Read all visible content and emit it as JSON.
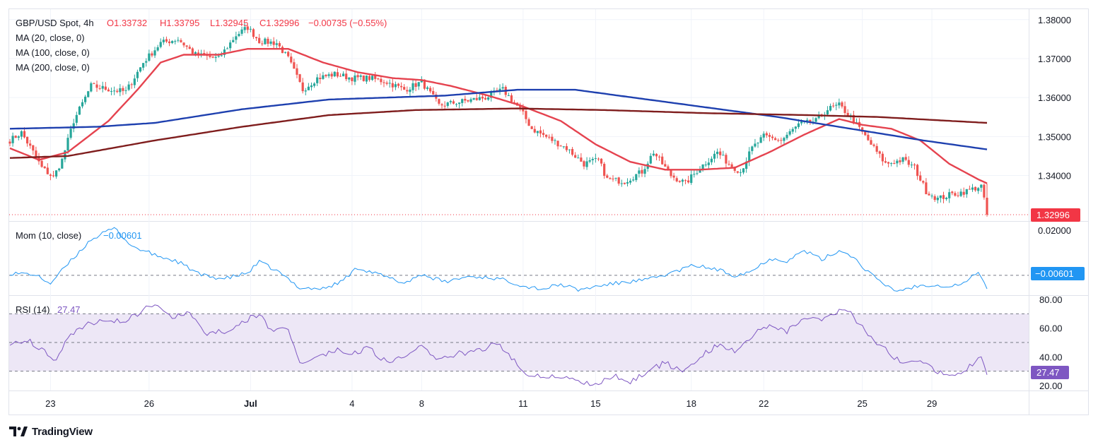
{
  "header": {
    "symbol": "GBP/USD Spot, 4h",
    "open": "O1.33732",
    "high": "H1.33795",
    "low": "L1.32945",
    "close": "C1.32996",
    "change": "−0.00735 (−0.55%)"
  },
  "legend": {
    "ma20": "MA (20, close, 0)",
    "ma100": "MA (100, close, 0)",
    "ma200": "MA (200, close, 0)",
    "mom_name": "Mom (10, close)",
    "mom_value": "−0.00601",
    "rsi_name": "RSI (14)",
    "rsi_value": "27.47"
  },
  "badges": {
    "price": "1.32996",
    "mom": "−0.00601",
    "rsi": "27.47"
  },
  "brand": {
    "name": "TradingView"
  },
  "colors": {
    "up": "#26a69a",
    "down": "#ef5350",
    "ma20": "#e5434f",
    "ma100": "#1e40af",
    "ma200": "#7f1d1d",
    "mom": "#2196f3",
    "rsi": "#7e57c2",
    "rsi_band": "#ede7f6",
    "price_badge": "#f23645",
    "mom_badge": "#2196f3",
    "rsi_badge": "#7e57c2"
  },
  "chart_data": [
    {
      "type": "candlestick",
      "title": "GBP/USD Spot, 4h",
      "ylim": [
        1.3285,
        1.3825
      ],
      "y_ticks": [
        "1.38000",
        "1.37000",
        "1.36000",
        "1.35000",
        "1.34000"
      ],
      "x_ticks": [
        {
          "label": "23",
          "bar": 14
        },
        {
          "label": "26",
          "bar": 48
        },
        {
          "label": "Jul",
          "bar": 83
        },
        {
          "label": "4",
          "bar": 118
        },
        {
          "label": "8",
          "bar": 142
        },
        {
          "label": "11",
          "bar": 177
        },
        {
          "label": "15",
          "bar": 202
        },
        {
          "label": "18",
          "bar": 235
        },
        {
          "label": "22",
          "bar": 260
        },
        {
          "label": "25",
          "bar": 294
        },
        {
          "label": "29",
          "bar": 318
        }
      ],
      "ohlc_anchors": [
        [
          0,
          1.349
        ],
        [
          4,
          1.351
        ],
        [
          8,
          1.346
        ],
        [
          11,
          1.342
        ],
        [
          15,
          1.3395
        ],
        [
          18,
          1.344
        ],
        [
          22,
          1.354
        ],
        [
          28,
          1.363
        ],
        [
          35,
          1.362
        ],
        [
          40,
          1.3615
        ],
        [
          46,
          1.369
        ],
        [
          52,
          1.374
        ],
        [
          58,
          1.375
        ],
        [
          64,
          1.371
        ],
        [
          72,
          1.37
        ],
        [
          78,
          1.376
        ],
        [
          82,
          1.378
        ],
        [
          86,
          1.3745
        ],
        [
          92,
          1.374
        ],
        [
          96,
          1.37
        ],
        [
          101,
          1.362
        ],
        [
          106,
          1.365
        ],
        [
          112,
          1.366
        ],
        [
          118,
          1.365
        ],
        [
          124,
          1.365
        ],
        [
          130,
          1.364
        ],
        [
          136,
          1.362
        ],
        [
          142,
          1.364
        ],
        [
          148,
          1.358
        ],
        [
          156,
          1.359
        ],
        [
          164,
          1.36
        ],
        [
          170,
          1.362
        ],
        [
          176,
          1.357
        ],
        [
          180,
          1.352
        ],
        [
          186,
          1.3495
        ],
        [
          192,
          1.347
        ],
        [
          198,
          1.343
        ],
        [
          203,
          1.344
        ],
        [
          206,
          1.339
        ],
        [
          212,
          1.3385
        ],
        [
          218,
          1.341
        ],
        [
          222,
          1.346
        ],
        [
          228,
          1.34
        ],
        [
          233,
          1.338
        ],
        [
          238,
          1.342
        ],
        [
          244,
          1.346
        ],
        [
          248,
          1.343
        ],
        [
          252,
          1.341
        ],
        [
          256,
          1.347
        ],
        [
          260,
          1.35
        ],
        [
          266,
          1.349
        ],
        [
          272,
          1.353
        ],
        [
          278,
          1.354
        ],
        [
          282,
          1.357
        ],
        [
          286,
          1.358
        ],
        [
          290,
          1.355
        ],
        [
          294,
          1.351
        ],
        [
          298,
          1.347
        ],
        [
          302,
          1.343
        ],
        [
          308,
          1.344
        ],
        [
          312,
          1.342
        ],
        [
          316,
          1.336
        ],
        [
          320,
          1.334
        ],
        [
          324,
          1.335
        ],
        [
          330,
          1.336
        ],
        [
          335,
          1.3373
        ],
        [
          337,
          1.32996
        ]
      ],
      "last_close": 1.32996,
      "series": [
        {
          "name": "MA (20, close, 0)",
          "anchors": [
            [
              0,
              1.347
            ],
            [
              10,
              1.344
            ],
            [
              20,
              1.346
            ],
            [
              34,
              1.354
            ],
            [
              44,
              1.362
            ],
            [
              52,
              1.369
            ],
            [
              60,
              1.371
            ],
            [
              72,
              1.371
            ],
            [
              82,
              1.3725
            ],
            [
              96,
              1.3725
            ],
            [
              108,
              1.369
            ],
            [
              120,
              1.3665
            ],
            [
              132,
              1.365
            ],
            [
              142,
              1.3645
            ],
            [
              152,
              1.363
            ],
            [
              165,
              1.3605
            ],
            [
              176,
              1.358
            ],
            [
              190,
              1.354
            ],
            [
              202,
              1.348
            ],
            [
              214,
              1.3435
            ],
            [
              226,
              1.3415
            ],
            [
              238,
              1.3415
            ],
            [
              250,
              1.342
            ],
            [
              262,
              1.346
            ],
            [
              274,
              1.3505
            ],
            [
              286,
              1.3545
            ],
            [
              294,
              1.353
            ],
            [
              304,
              1.352
            ],
            [
              314,
              1.349
            ],
            [
              324,
              1.343
            ],
            [
              334,
              1.339
            ],
            [
              337,
              1.338
            ]
          ]
        },
        {
          "name": "MA (100, close, 0)",
          "anchors": [
            [
              0,
              1.352
            ],
            [
              30,
              1.3525
            ],
            [
              50,
              1.3535
            ],
            [
              80,
              1.357
            ],
            [
              110,
              1.3595
            ],
            [
              150,
              1.3605
            ],
            [
              175,
              1.362
            ],
            [
              195,
              1.362
            ],
            [
              215,
              1.36
            ],
            [
              240,
              1.3575
            ],
            [
              265,
              1.355
            ],
            [
              290,
              1.352
            ],
            [
              315,
              1.349
            ],
            [
              337,
              1.3467
            ]
          ]
        },
        {
          "name": "MA (200, close, 0)",
          "anchors": [
            [
              0,
              1.3445
            ],
            [
              20,
              1.345
            ],
            [
              50,
              1.349
            ],
            [
              80,
              1.3525
            ],
            [
              110,
              1.3555
            ],
            [
              140,
              1.3568
            ],
            [
              175,
              1.3572
            ],
            [
              205,
              1.3568
            ],
            [
              240,
              1.356
            ],
            [
              275,
              1.3555
            ],
            [
              300,
              1.355
            ],
            [
              337,
              1.3535
            ]
          ]
        }
      ]
    },
    {
      "type": "line",
      "title": "Mom (10, close)",
      "ylim": [
        -0.0085,
        0.0235
      ],
      "y_ticks": [
        "0.02000",
        "0.00000"
      ],
      "series": [
        {
          "name": "Mom (10, close)",
          "anchors": [
            [
              0,
              0.001
            ],
            [
              8,
              0.0005
            ],
            [
              14,
              -0.0035
            ],
            [
              20,
              0.005
            ],
            [
              28,
              0.016
            ],
            [
              36,
              0.021
            ],
            [
              42,
              0.013
            ],
            [
              50,
              0.009
            ],
            [
              58,
              0.006
            ],
            [
              66,
              0.0
            ],
            [
              74,
              -0.0015
            ],
            [
              82,
              0.001
            ],
            [
              86,
              0.006
            ],
            [
              92,
              0.002
            ],
            [
              100,
              -0.0055
            ],
            [
              108,
              -0.006
            ],
            [
              114,
              -0.003
            ],
            [
              120,
              0.0035
            ],
            [
              128,
              0.0
            ],
            [
              136,
              -0.0035
            ],
            [
              142,
              0.0005
            ],
            [
              150,
              -0.003
            ],
            [
              158,
              -0.0005
            ],
            [
              166,
              -0.001
            ],
            [
              172,
              -0.0025
            ],
            [
              178,
              -0.005
            ],
            [
              184,
              -0.006
            ],
            [
              190,
              -0.004
            ],
            [
              196,
              -0.0065
            ],
            [
              204,
              -0.0045
            ],
            [
              212,
              -0.003
            ],
            [
              220,
              -0.002
            ],
            [
              228,
              0.001
            ],
            [
              236,
              0.0045
            ],
            [
              244,
              0.0025
            ],
            [
              250,
              0.0
            ],
            [
              256,
              0.002
            ],
            [
              262,
              0.0075
            ],
            [
              268,
              0.0065
            ],
            [
              274,
              0.011
            ],
            [
              280,
              0.007
            ],
            [
              286,
              0.011
            ],
            [
              290,
              0.009
            ],
            [
              294,
              0.004
            ],
            [
              300,
              -0.003
            ],
            [
              306,
              -0.007
            ],
            [
              312,
              -0.005
            ],
            [
              318,
              -0.004
            ],
            [
              324,
              -0.005
            ],
            [
              330,
              -0.003
            ],
            [
              334,
              0.002
            ],
            [
              337,
              -0.006
            ]
          ]
        }
      ]
    },
    {
      "type": "line",
      "title": "RSI (14)",
      "ylim": [
        17,
        82
      ],
      "y_ticks": [
        "80.00",
        "60.00",
        "40.00",
        "20.00"
      ],
      "band": [
        30,
        70
      ],
      "midline": 50,
      "series": [
        {
          "name": "RSI (14)",
          "anchors": [
            [
              0,
              50
            ],
            [
              6,
              52
            ],
            [
              12,
              44
            ],
            [
              16,
              38
            ],
            [
              20,
              55
            ],
            [
              26,
              62
            ],
            [
              32,
              66
            ],
            [
              40,
              65
            ],
            [
              46,
              72
            ],
            [
              50,
              78
            ],
            [
              56,
              68
            ],
            [
              62,
              70
            ],
            [
              68,
              56
            ],
            [
              74,
              58
            ],
            [
              80,
              64
            ],
            [
              86,
              70
            ],
            [
              90,
              58
            ],
            [
              96,
              60
            ],
            [
              100,
              36
            ],
            [
              106,
              40
            ],
            [
              112,
              45
            ],
            [
              118,
              42
            ],
            [
              124,
              46
            ],
            [
              130,
              36
            ],
            [
              136,
              40
            ],
            [
              142,
              48
            ],
            [
              148,
              37
            ],
            [
              154,
              42
            ],
            [
              162,
              44
            ],
            [
              168,
              50
            ],
            [
              172,
              42
            ],
            [
              178,
              28
            ],
            [
              184,
              27
            ],
            [
              190,
              26
            ],
            [
              196,
              24
            ],
            [
              202,
              20
            ],
            [
              208,
              27
            ],
            [
              214,
              23
            ],
            [
              220,
              30
            ],
            [
              226,
              36
            ],
            [
              232,
              29
            ],
            [
              238,
              40
            ],
            [
              244,
              48
            ],
            [
              250,
              44
            ],
            [
              256,
              55
            ],
            [
              262,
              63
            ],
            [
              268,
              58
            ],
            [
              274,
              68
            ],
            [
              280,
              66
            ],
            [
              286,
              72
            ],
            [
              290,
              70
            ],
            [
              296,
              55
            ],
            [
              302,
              45
            ],
            [
              308,
              35
            ],
            [
              314,
              36
            ],
            [
              320,
              30
            ],
            [
              326,
              26
            ],
            [
              332,
              35
            ],
            [
              335,
              40
            ],
            [
              337,
              27.47
            ]
          ]
        }
      ]
    }
  ]
}
